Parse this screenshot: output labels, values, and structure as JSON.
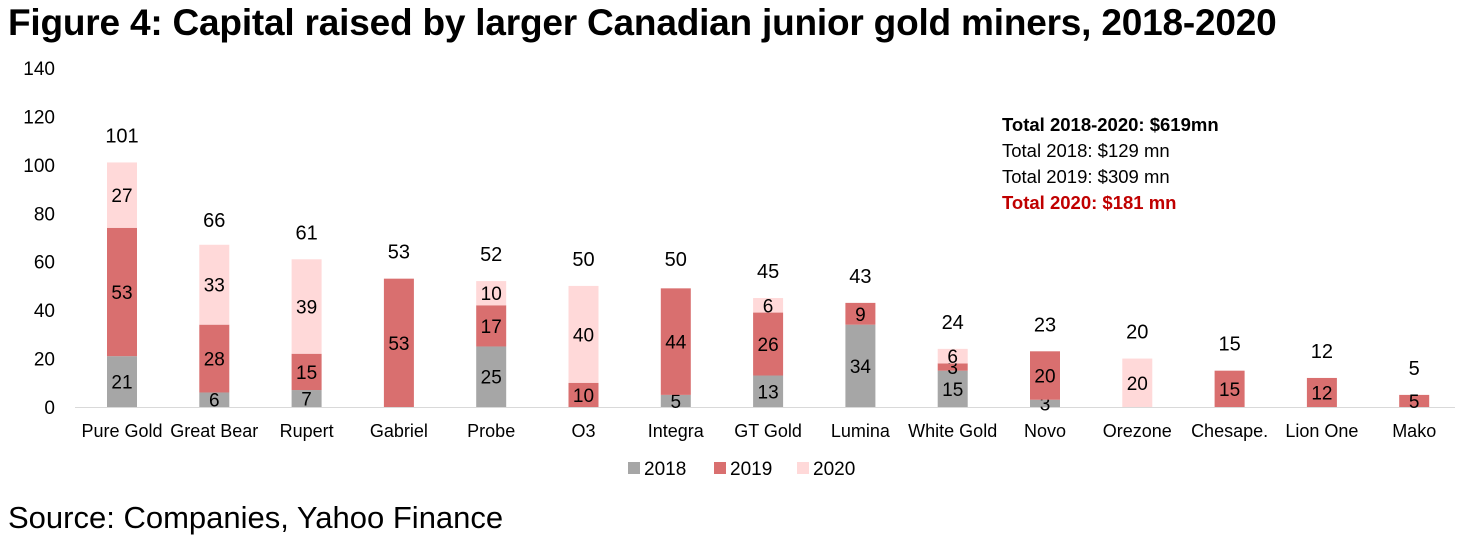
{
  "title": "Figure 4: Capital raised by larger Canadian junior gold miners, 2018-2020",
  "source": "Source: Companies, Yahoo Finance",
  "summary": {
    "total_all": "Total 2018-2020: $619mn",
    "total_2018": "Total 2018: $129 mn",
    "total_2019": "Total 2019: $309 mn",
    "total_2020": "Total 2020: $181 mn"
  },
  "colors": {
    "s2018": "#a6a6a6",
    "s2019": "#d96f6f",
    "s2020": "#ffd9d9",
    "highlight": "#c00000"
  },
  "chart_data": {
    "type": "bar",
    "stacked": true,
    "title": "Figure 4: Capital raised by larger Canadian junior gold miners, 2018-2020",
    "xlabel": "",
    "ylabel": "",
    "ylim": [
      0,
      140
    ],
    "yticks": [
      0,
      20,
      40,
      60,
      80,
      100,
      120,
      140
    ],
    "grid": false,
    "legend_position": "bottom",
    "categories": [
      "Pure Gold",
      "Great Bear",
      "Rupert",
      "Gabriel",
      "Probe",
      "O3",
      "Integra",
      "GT Gold",
      "Lumina",
      "White Gold",
      "Novo",
      "Orezone",
      "Chesape.",
      "Lion One",
      "Mako"
    ],
    "series": [
      {
        "name": "2018",
        "values": [
          21,
          6,
          7,
          0,
          25,
          0,
          5,
          13,
          34,
          15,
          3,
          0,
          0,
          0,
          0
        ],
        "labels": [
          "21",
          "6",
          "7",
          "",
          "25",
          "",
          "5",
          "13",
          "34",
          "15",
          "3",
          "",
          "",
          "",
          ""
        ]
      },
      {
        "name": "2019",
        "values": [
          53,
          28,
          15,
          53,
          17,
          10,
          44,
          26,
          9,
          3,
          20,
          0,
          15,
          12,
          5
        ],
        "labels": [
          "53",
          "28",
          "15",
          "53",
          "17",
          "10",
          "44",
          "26",
          "9",
          "3",
          "20",
          "",
          "15",
          "12",
          "5"
        ]
      },
      {
        "name": "2020",
        "values": [
          27,
          33,
          39,
          0,
          10,
          40,
          0,
          6,
          0,
          6,
          0,
          20,
          0,
          0,
          0
        ],
        "labels": [
          "27",
          "33",
          "39",
          "",
          "10",
          "40",
          "",
          "6",
          "",
          "6",
          "",
          "20",
          "",
          "",
          ""
        ]
      }
    ],
    "totals": [
      101,
      66,
      61,
      53,
      52,
      50,
      50,
      45,
      43,
      24,
      23,
      20,
      15,
      12,
      5
    ],
    "total_labels": [
      "101",
      "66",
      "61",
      "53",
      "52",
      "50",
      "50",
      "45",
      "43",
      "24",
      "23",
      "20",
      "15",
      "12",
      "5"
    ]
  }
}
